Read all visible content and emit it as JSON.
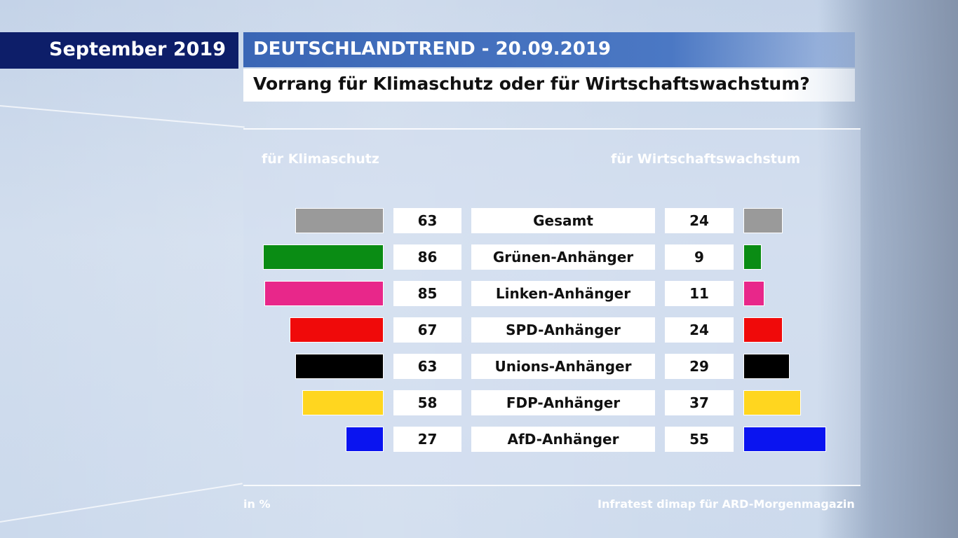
{
  "header": {
    "month": "September 2019",
    "series_title": "DEUTSCHLANDTREND - 20.09.2019",
    "question": "Vorrang für Klimaschutz oder für Wirtschaftswachstum?"
  },
  "footer": {
    "unit": "in %",
    "source": "Infratest dimap für ARD-Morgenmagazin"
  },
  "chart_data": {
    "type": "bar",
    "title": "Vorrang für Klimaschutz oder für Wirtschaftswachstum?",
    "categories": [
      "Gesamt",
      "Grünen-Anhänger",
      "Linken-Anhänger",
      "SPD-Anhänger",
      "Unions-Anhänger",
      "FDP-Anhänger",
      "AfD-Anhänger"
    ],
    "colors": [
      "#9a9a9a",
      "#0a8c14",
      "#e8278a",
      "#f00a0a",
      "#000000",
      "#ffd61f",
      "#0a14f0"
    ],
    "series": [
      {
        "name": "für Klimaschutz",
        "values": [
          63,
          86,
          85,
          67,
          63,
          58,
          27
        ]
      },
      {
        "name": "für Wirtschaftswachstum",
        "values": [
          24,
          9,
          11,
          24,
          29,
          37,
          55
        ]
      }
    ],
    "unit": "in %",
    "legend": "top",
    "grid": false
  }
}
